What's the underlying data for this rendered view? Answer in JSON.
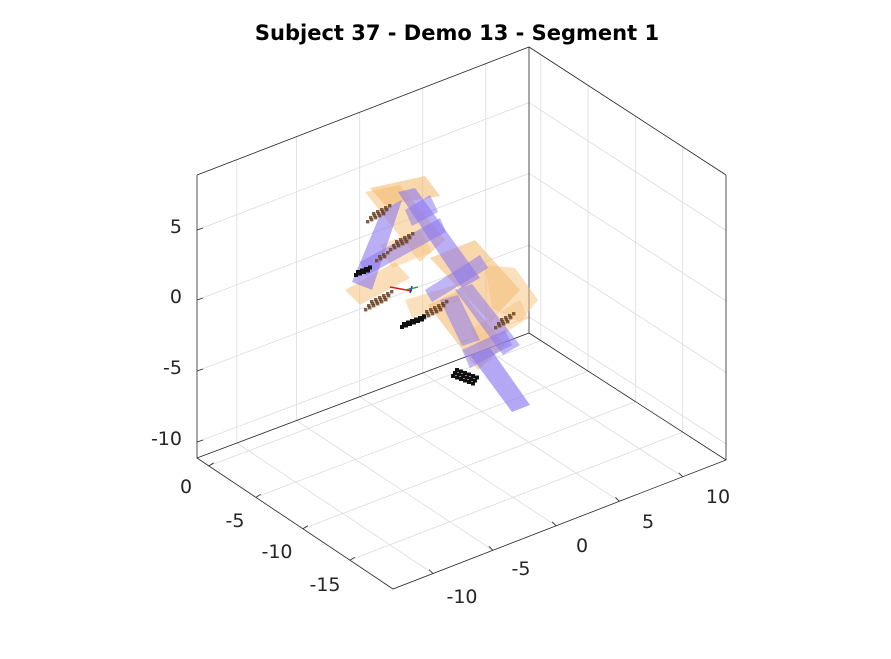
{
  "chart_data": {
    "type": "3d-scatter",
    "title": "Subject 37 - Demo 13 - Segment 1",
    "xlabel": "",
    "ylabel": "",
    "zlabel": "",
    "x_ticks": [
      "-10",
      "-5",
      "0",
      "5",
      "10"
    ],
    "y_ticks": [
      "0",
      "-5",
      "-10",
      "-15"
    ],
    "z_ticks": [
      "5",
      "0",
      "-5",
      "-10"
    ],
    "xlim": [
      -12,
      12
    ],
    "ylim": [
      -18,
      2
    ],
    "zlim": [
      -11,
      8
    ],
    "grid": true,
    "box": true,
    "colors": {
      "link_purple": "#8c78ee",
      "link_orange": "#f6c27c",
      "marker_brown": "#6b4424",
      "marker_black": "#111111"
    }
  }
}
